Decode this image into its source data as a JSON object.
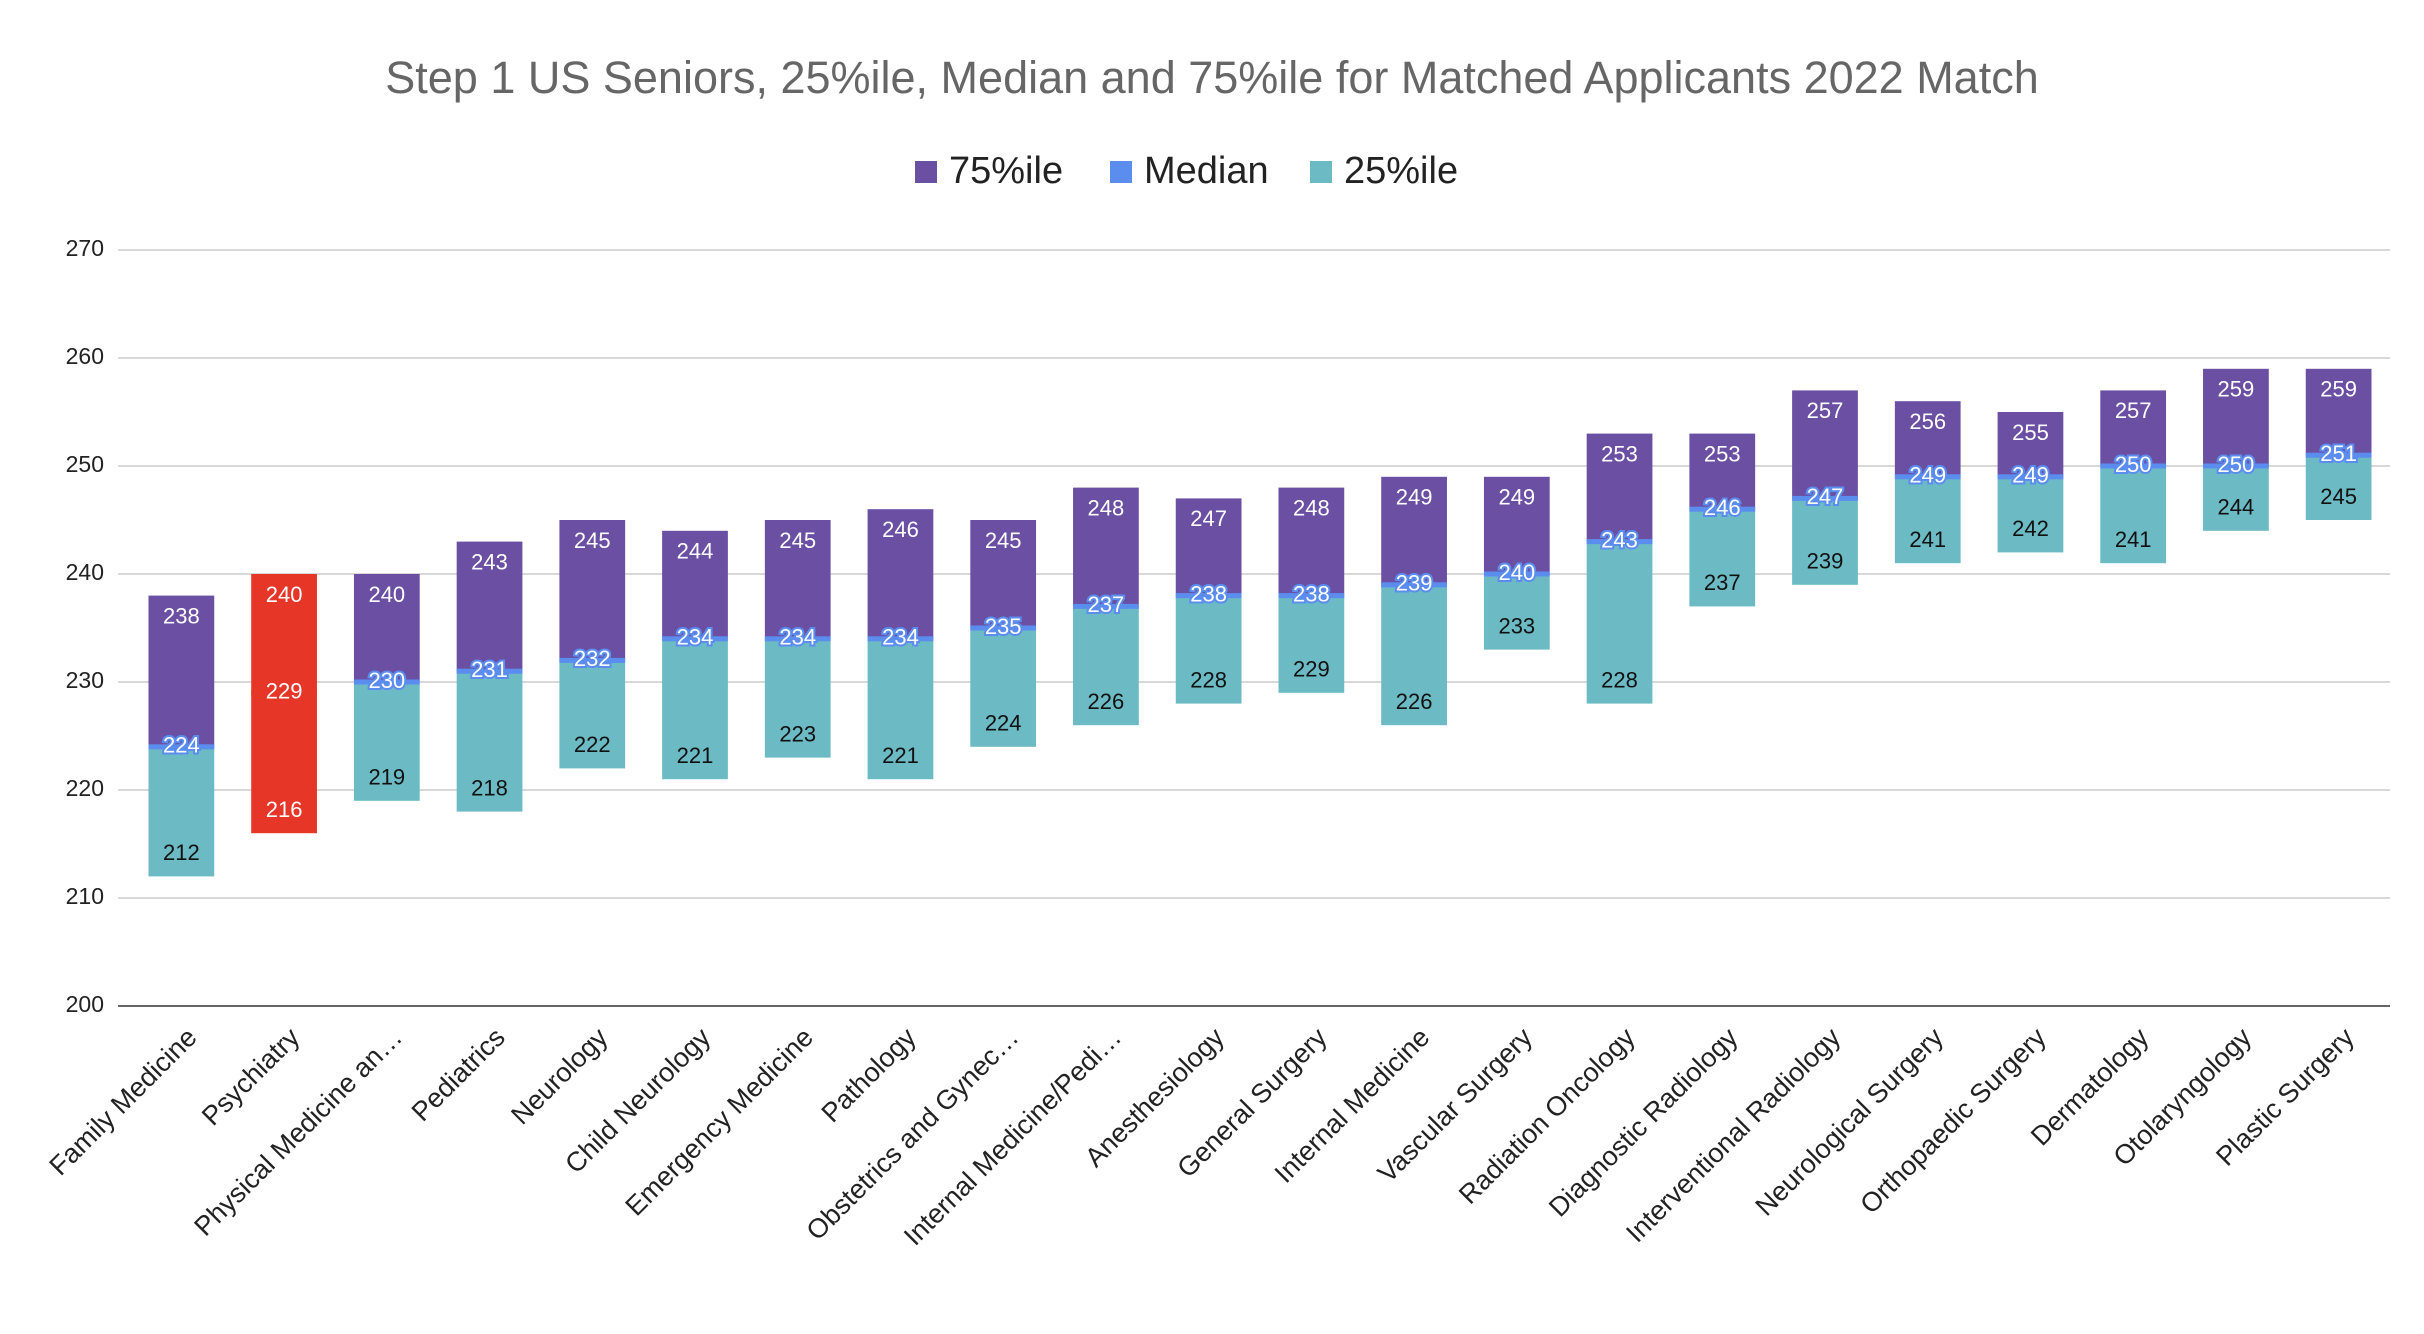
{
  "chart_data": {
    "type": "floating_bar",
    "title": "Step 1 US Seniors, 25%ile, Median and 75%ile for Matched Applicants 2022 Match",
    "categories": [
      "Family Medicine",
      "Psychiatry",
      "Physical Medicine an…",
      "Pediatrics",
      "Neurology",
      "Child Neurology",
      "Emergency Medicine",
      "Pathology",
      "Obstetrics and Gynec…",
      "Internal Medicine/Pedi…",
      "Anesthesiology",
      "General Surgery",
      "Internal Medicine",
      "Vascular Surgery",
      "Radiation Oncology",
      "Diagnostic Radiology",
      "Interventional Radiology",
      "Neurological Surgery",
      "Orthopaedic Surgery",
      "Dermatology",
      "Otolaryngology",
      "Plastic Surgery"
    ],
    "series": [
      {
        "name": "75%ile",
        "color": "#6a4fa3",
        "colors": [
          "#6a4fa3",
          "#e53628",
          "#6a4fa3",
          "#6a4fa3",
          "#6a4fa3",
          "#6a4fa3",
          "#6a4fa3",
          "#6a4fa3",
          "#6a4fa3",
          "#6a4fa3",
          "#6a4fa3",
          "#6a4fa3",
          "#6a4fa3",
          "#6a4fa3",
          "#6a4fa3",
          "#6a4fa3",
          "#6a4fa3",
          "#6a4fa3",
          "#6a4fa3",
          "#6a4fa3",
          "#6a4fa3",
          "#6a4fa3"
        ],
        "values": [
          238,
          240,
          240,
          243,
          245,
          244,
          245,
          246,
          245,
          248,
          247,
          248,
          249,
          249,
          253,
          253,
          257,
          256,
          255,
          257,
          259,
          259
        ]
      },
      {
        "name": "Median",
        "color": "#5b8def",
        "colors": [
          "#5b8def",
          "#e53628",
          "#5b8def",
          "#5b8def",
          "#5b8def",
          "#5b8def",
          "#5b8def",
          "#5b8def",
          "#5b8def",
          "#5b8def",
          "#5b8def",
          "#5b8def",
          "#5b8def",
          "#5b8def",
          "#5b8def",
          "#5b8def",
          "#5b8def",
          "#5b8def",
          "#5b8def",
          "#5b8def",
          "#5b8def",
          "#5b8def"
        ],
        "values": [
          224,
          229,
          230,
          231,
          232,
          234,
          234,
          234,
          235,
          237,
          238,
          238,
          239,
          240,
          243,
          246,
          247,
          249,
          249,
          250,
          250,
          251
        ]
      },
      {
        "name": "25%ile",
        "color": "#6bbac4",
        "colors": [
          "#6bbac4",
          "#e53628",
          "#6bbac4",
          "#6bbac4",
          "#6bbac4",
          "#6bbac4",
          "#6bbac4",
          "#6bbac4",
          "#6bbac4",
          "#6bbac4",
          "#6bbac4",
          "#6bbac4",
          "#6bbac4",
          "#6bbac4",
          "#6bbac4",
          "#6bbac4",
          "#6bbac4",
          "#6bbac4",
          "#6bbac4",
          "#6bbac4",
          "#6bbac4",
          "#6bbac4"
        ],
        "values": [
          212,
          216,
          219,
          218,
          222,
          221,
          223,
          221,
          224,
          226,
          228,
          229,
          226,
          233,
          228,
          237,
          239,
          241,
          242,
          241,
          244,
          245
        ]
      }
    ],
    "ylim": [
      200,
      270
    ],
    "yticks": [
      200,
      210,
      220,
      230,
      240,
      250,
      260,
      270
    ],
    "grid": true,
    "legend": "top"
  }
}
